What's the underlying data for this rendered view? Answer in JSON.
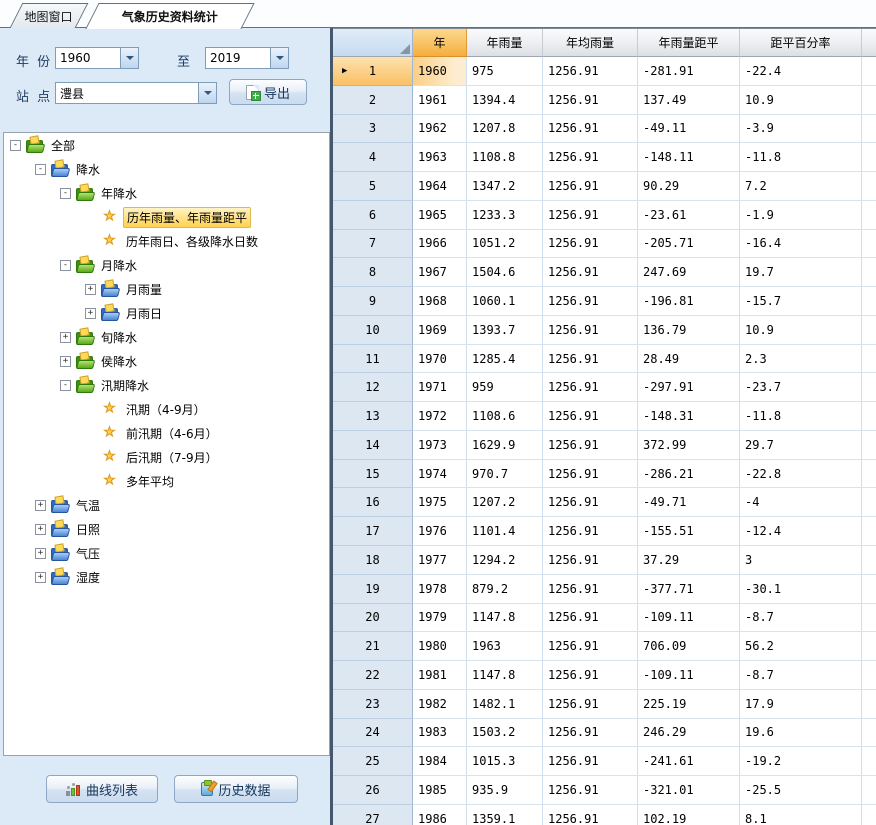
{
  "tabs": [
    {
      "label": "地图窗口",
      "active": false
    },
    {
      "label": "气象历史资料统计",
      "active": true
    }
  ],
  "filters": {
    "year_label": "年 份",
    "year_from": "1960",
    "to_label": "至",
    "year_to": "2019",
    "station_label": "站 点",
    "station": "澧县",
    "export_label": "导出"
  },
  "tree": {
    "items": [
      {
        "label": "全部",
        "level": 0,
        "icon": "folder-green",
        "expand": "minus",
        "selected": false
      },
      {
        "label": "降水",
        "level": 1,
        "icon": "folder-blue",
        "expand": "minus",
        "selected": false
      },
      {
        "label": "年降水",
        "level": 2,
        "icon": "folder-green",
        "expand": "minus",
        "selected": false
      },
      {
        "label": "历年雨量、年雨量距平",
        "level": 3,
        "icon": "star",
        "expand": "none",
        "selected": true
      },
      {
        "label": "历年雨日、各级降水日数",
        "level": 3,
        "icon": "star",
        "expand": "none",
        "selected": false
      },
      {
        "label": "月降水",
        "level": 2,
        "icon": "folder-green",
        "expand": "minus",
        "selected": false
      },
      {
        "label": "月雨量",
        "level": 3,
        "icon": "folder-blue",
        "expand": "plus",
        "selected": false
      },
      {
        "label": "月雨日",
        "level": 3,
        "icon": "folder-blue",
        "expand": "plus",
        "selected": false
      },
      {
        "label": "旬降水",
        "level": 2,
        "icon": "folder-green",
        "expand": "plus",
        "selected": false
      },
      {
        "label": "侯降水",
        "level": 2,
        "icon": "folder-green",
        "expand": "plus",
        "selected": false
      },
      {
        "label": "汛期降水",
        "level": 2,
        "icon": "folder-green",
        "expand": "minus",
        "selected": false
      },
      {
        "label": "汛期（4-9月）",
        "level": 3,
        "icon": "star",
        "expand": "none",
        "selected": false
      },
      {
        "label": "前汛期（4-6月）",
        "level": 3,
        "icon": "star",
        "expand": "none",
        "selected": false
      },
      {
        "label": "后汛期（7-9月）",
        "level": 3,
        "icon": "star",
        "expand": "none",
        "selected": false
      },
      {
        "label": "多年平均",
        "level": 3,
        "icon": "star",
        "expand": "none",
        "selected": false
      },
      {
        "label": "气温",
        "level": 1,
        "icon": "folder-blue",
        "expand": "plus",
        "selected": false
      },
      {
        "label": "日照",
        "level": 1,
        "icon": "folder-blue",
        "expand": "plus",
        "selected": false
      },
      {
        "label": "气压",
        "level": 1,
        "icon": "folder-blue",
        "expand": "plus",
        "selected": false
      },
      {
        "label": "湿度",
        "level": 1,
        "icon": "folder-blue",
        "expand": "plus",
        "selected": false
      }
    ]
  },
  "actions": {
    "curve_list": "曲线列表",
    "history_data": "历史数据"
  },
  "table": {
    "columns": [
      "年",
      "年雨量",
      "年均雨量",
      "年雨量距平",
      "距平百分率"
    ],
    "rows": [
      [
        "1",
        "1960",
        "975",
        "1256.91",
        "-281.91",
        "-22.4"
      ],
      [
        "2",
        "1961",
        "1394.4",
        "1256.91",
        "137.49",
        "10.9"
      ],
      [
        "3",
        "1962",
        "1207.8",
        "1256.91",
        "-49.11",
        "-3.9"
      ],
      [
        "4",
        "1963",
        "1108.8",
        "1256.91",
        "-148.11",
        "-11.8"
      ],
      [
        "5",
        "1964",
        "1347.2",
        "1256.91",
        "90.29",
        "7.2"
      ],
      [
        "6",
        "1965",
        "1233.3",
        "1256.91",
        "-23.61",
        "-1.9"
      ],
      [
        "7",
        "1966",
        "1051.2",
        "1256.91",
        "-205.71",
        "-16.4"
      ],
      [
        "8",
        "1967",
        "1504.6",
        "1256.91",
        "247.69",
        "19.7"
      ],
      [
        "9",
        "1968",
        "1060.1",
        "1256.91",
        "-196.81",
        "-15.7"
      ],
      [
        "10",
        "1969",
        "1393.7",
        "1256.91",
        "136.79",
        "10.9"
      ],
      [
        "11",
        "1970",
        "1285.4",
        "1256.91",
        "28.49",
        "2.3"
      ],
      [
        "12",
        "1971",
        "959",
        "1256.91",
        "-297.91",
        "-23.7"
      ],
      [
        "13",
        "1972",
        "1108.6",
        "1256.91",
        "-148.31",
        "-11.8"
      ],
      [
        "14",
        "1973",
        "1629.9",
        "1256.91",
        "372.99",
        "29.7"
      ],
      [
        "15",
        "1974",
        "970.7",
        "1256.91",
        "-286.21",
        "-22.8"
      ],
      [
        "16",
        "1975",
        "1207.2",
        "1256.91",
        "-49.71",
        "-4"
      ],
      [
        "17",
        "1976",
        "1101.4",
        "1256.91",
        "-155.51",
        "-12.4"
      ],
      [
        "18",
        "1977",
        "1294.2",
        "1256.91",
        "37.29",
        "3"
      ],
      [
        "19",
        "1978",
        "879.2",
        "1256.91",
        "-377.71",
        "-30.1"
      ],
      [
        "20",
        "1979",
        "1147.8",
        "1256.91",
        "-109.11",
        "-8.7"
      ],
      [
        "21",
        "1980",
        "1963",
        "1256.91",
        "706.09",
        "56.2"
      ],
      [
        "22",
        "1981",
        "1147.8",
        "1256.91",
        "-109.11",
        "-8.7"
      ],
      [
        "23",
        "1982",
        "1482.1",
        "1256.91",
        "225.19",
        "17.9"
      ],
      [
        "24",
        "1983",
        "1503.2",
        "1256.91",
        "246.29",
        "19.6"
      ],
      [
        "25",
        "1984",
        "1015.3",
        "1256.91",
        "-241.61",
        "-19.2"
      ],
      [
        "26",
        "1985",
        "935.9",
        "1256.91",
        "-321.01",
        "-25.5"
      ],
      [
        "27",
        "1986",
        "1359.1",
        "1256.91",
        "102.19",
        "8.1"
      ]
    ],
    "selected_row_index": 0
  },
  "colors": {
    "panel_bg": "#dce9f7",
    "selection_orange": "#f5ae3d",
    "tree_highlight": "#ffd24e",
    "grid_line": "#d0dfee"
  }
}
